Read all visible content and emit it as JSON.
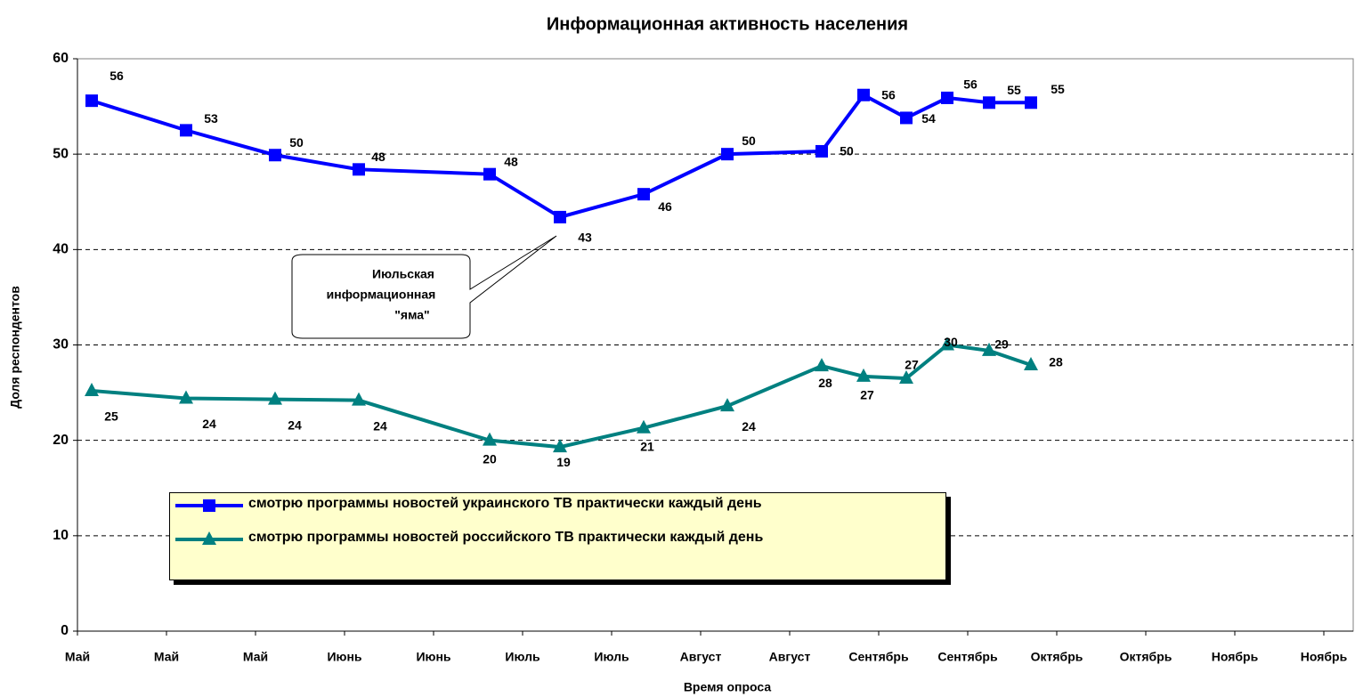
{
  "chart_data": {
    "type": "line",
    "title": "Информационная активность населения",
    "x_label": "Время опроса",
    "y_label": "Доля респондентов",
    "annotation": [
      "Июльская",
      "информационная",
      "\"яма\""
    ],
    "x": [
      1.6,
      12.2,
      22.2,
      31.6,
      46.3,
      54.2,
      63.6,
      73,
      83.6,
      88.3,
      93.1,
      97.7,
      102.4,
      107.1
    ],
    "xlim": [
      0,
      140
    ],
    "xticks": [
      {
        "value": 0,
        "label": "Май"
      },
      {
        "value": 10,
        "label": "Май"
      },
      {
        "value": 20,
        "label": "Май"
      },
      {
        "value": 30,
        "label": "Июнь"
      },
      {
        "value": 40,
        "label": "Июнь"
      },
      {
        "value": 50,
        "label": "Июль"
      },
      {
        "value": 60,
        "label": "Июль"
      },
      {
        "value": 70,
        "label": "Август"
      },
      {
        "value": 80,
        "label": "Август"
      },
      {
        "value": 90,
        "label": "Сентябрь"
      },
      {
        "value": 100,
        "label": "Сентябрь"
      },
      {
        "value": 110,
        "label": "Октябрь"
      },
      {
        "value": 120,
        "label": "Октябрь"
      },
      {
        "value": 130,
        "label": "Ноябрь"
      },
      {
        "value": 140,
        "label": "Ноябрь"
      }
    ],
    "ylim": [
      0,
      60
    ],
    "yticks": [
      0,
      10,
      20,
      30,
      40,
      50,
      60
    ],
    "grid": true,
    "series": [
      {
        "name": "смотрю программы новостей украинского ТВ практически каждый день",
        "color": "#0000ff",
        "marker": "square",
        "values": [
          55.6,
          52.5,
          49.9,
          48.4,
          47.9,
          43.4,
          45.8,
          50.0,
          50.3,
          56.2,
          53.8,
          55.9,
          55.4,
          55.4
        ],
        "value_labels": [
          "56",
          "53",
          "50",
          "48",
          "48",
          "43",
          "46",
          "50",
          "50",
          "56",
          "54",
          "56",
          "55",
          "55"
        ]
      },
      {
        "name": "смотрю программы новостей российского ТВ практически каждый день",
        "color": "#008080",
        "marker": "triangle",
        "values": [
          25.2,
          24.4,
          24.3,
          24.2,
          20.0,
          19.3,
          21.3,
          23.6,
          27.8,
          26.7,
          26.5,
          30.0,
          29.4,
          27.9
        ],
        "value_labels": [
          "25",
          "24",
          "24",
          "24",
          "20",
          "19",
          "21",
          "24",
          "28",
          "27",
          "27",
          "30",
          "29",
          "28"
        ]
      }
    ]
  }
}
